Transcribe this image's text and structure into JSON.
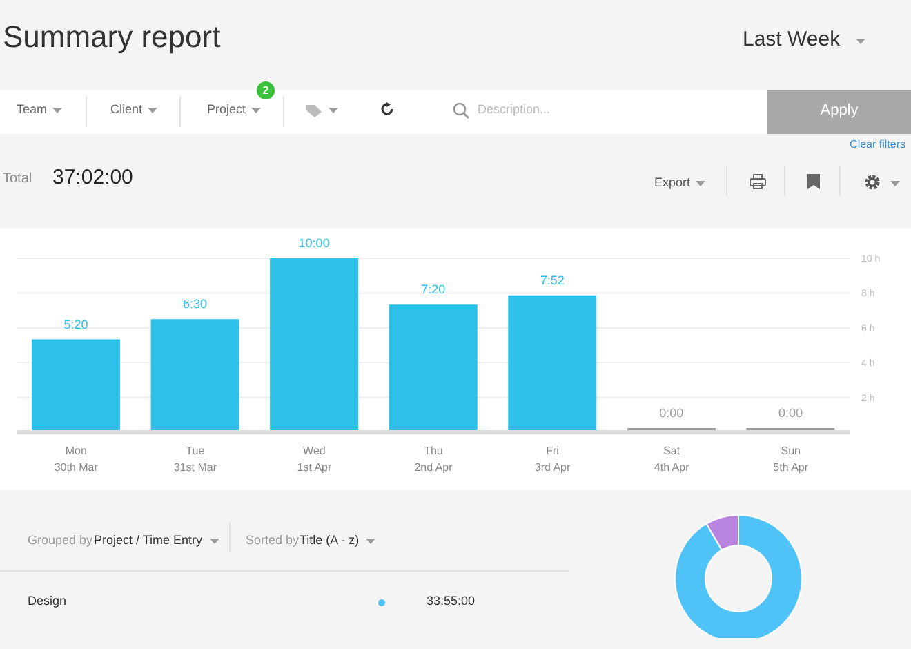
{
  "chart_data": [
    {
      "type": "bar",
      "categories": [
        "Mon\n30th Mar",
        "Tue\n31st Mar",
        "Wed\n1st Apr",
        "Thu\n2nd Apr",
        "Fri\n3rd Apr",
        "Sat\n4th Apr",
        "Sun\n5th Apr"
      ],
      "values": [
        5.333,
        6.5,
        10,
        7.333,
        7.867,
        0,
        0
      ],
      "value_labels": [
        "5:20",
        "6:30",
        "10:00",
        "7:20",
        "7:52",
        "0:00",
        "0:00"
      ],
      "colors": [
        "#2ec0e8",
        "#2ec0e8",
        "#2ec0e8",
        "#2ec0e8",
        "#2ec0e8",
        "#9a9a9a",
        "#9a9a9a"
      ],
      "ylim": [
        0,
        10
      ],
      "yticks": [
        {
          "value": 0,
          "label": null
        },
        {
          "value": 2,
          "label": "2 h"
        },
        {
          "value": 4,
          "label": "4 h"
        },
        {
          "value": 6,
          "label": "6 h"
        },
        {
          "value": 8,
          "label": "8 h"
        },
        {
          "value": 10,
          "label": "10 h"
        }
      ],
      "grid": "y",
      "legend": false,
      "annotations": [
        "Summary report",
        "Last Week",
        "Team",
        "Client",
        "Project",
        "2",
        "Description...",
        "Apply",
        "Clear filters",
        "Total",
        "37:02:00",
        "Export",
        "Grouped by",
        "Project / Time Entry",
        "Sorted by",
        "Title (A - z)",
        "Design",
        "33:55:00"
      ]
    },
    {
      "type": "donut",
      "categories": [
        null,
        null
      ],
      "values": [
        91.6,
        8.4
      ],
      "colors": [
        "#4fc3f7",
        "#b983e0"
      ],
      "legend": false
    }
  ]
}
